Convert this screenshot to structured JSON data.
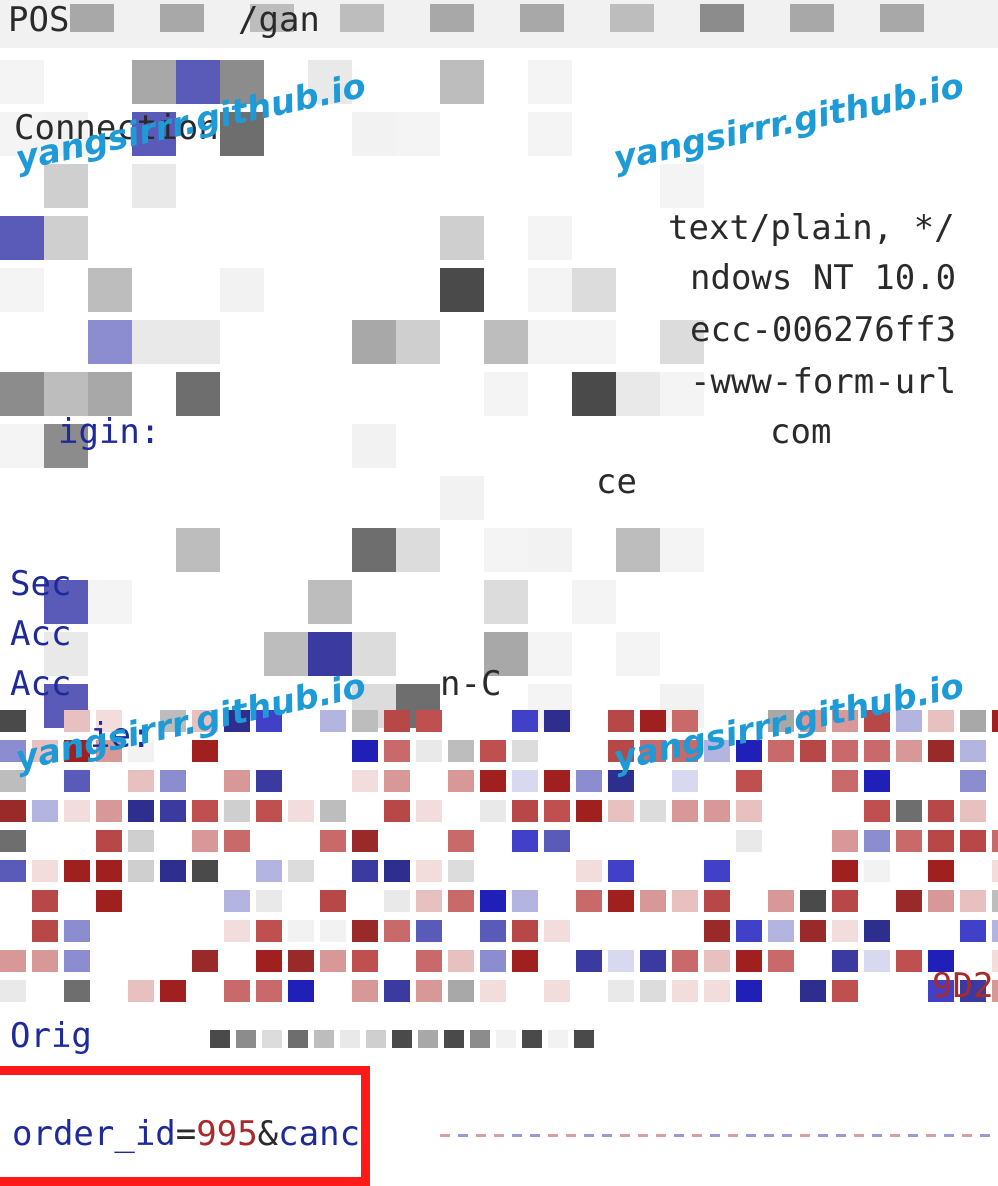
{
  "request": {
    "method_line": "POS",
    "path_fragment": "/gan",
    "header_connection": "Connection",
    "accept_fragment": "text/plain, */",
    "user_agent_fragment": "ndows NT 10.0",
    "token_fragment": "ecc-006276ff3",
    "content_type_fragment": "-www-form-url",
    "origin_fragment": "igin:",
    "origin_host_fragment": "com",
    "fetch_fragment": "ce",
    "sec_fragment": "Sec",
    "acc_fragment_1": "Acc",
    "acc_fragment_2": "Acc",
    "lang_fragment": "n-C",
    "cookie_fragment": "ie:",
    "cookie_tail_fragment": "9D2",
    "orig_fragment": "Orig",
    "body_key": "order_id",
    "body_eq": "=",
    "body_value": "995",
    "body_amp": "&",
    "body_next": "canc"
  },
  "watermark": {
    "text": "yangsirrr.github.io",
    "color": "#1e9ad6"
  },
  "colors": {
    "highlight_box": "#ff1a1a",
    "header_key": "#1e2a9a",
    "value_red": "#a82a2a"
  }
}
